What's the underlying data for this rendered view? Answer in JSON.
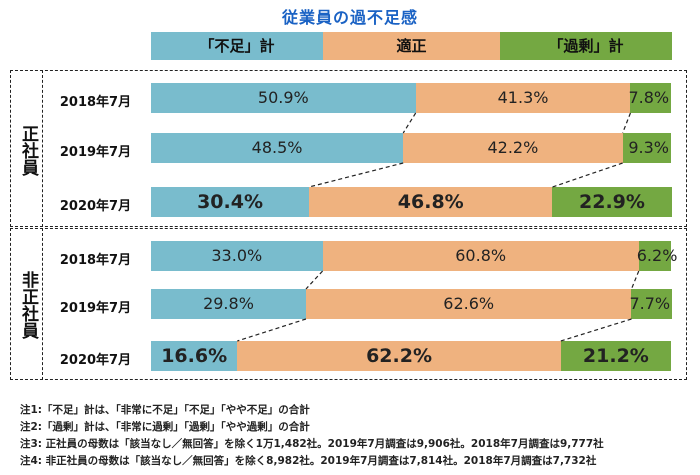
{
  "title": "従業員の過不足感",
  "legend": {
    "shortage": "「不足」計",
    "appropriate": "適正",
    "excess": "「過剰」計"
  },
  "colors": {
    "shortage": "#79bccd",
    "appropriate": "#efb27f",
    "excess": "#74a842"
  },
  "groups": {
    "regular": "正社員",
    "non_regular": "非正社員"
  },
  "chart_data": {
    "type": "bar",
    "orientation": "horizontal",
    "stacked": true,
    "percent": true,
    "title": "従業員の過不足感",
    "categories": [
      "正社員 2018年7月",
      "正社員 2019年7月",
      "正社員 2020年7月",
      "非正社員 2018年7月",
      "非正社員 2019年7月",
      "非正社員 2020年7月"
    ],
    "rows": [
      {
        "group": "正社員",
        "label": "2018年7月",
        "shortage": "50.9%",
        "appropriate": "41.3%",
        "excess": "7.8%",
        "values": [
          50.9,
          41.3,
          7.8
        ],
        "emphasis": false
      },
      {
        "group": "正社員",
        "label": "2019年7月",
        "shortage": "48.5%",
        "appropriate": "42.2%",
        "excess": "9.3%",
        "values": [
          48.5,
          42.2,
          9.3
        ],
        "emphasis": false
      },
      {
        "group": "正社員",
        "label": "2020年7月",
        "shortage": "30.4%",
        "appropriate": "46.8%",
        "excess": "22.9%",
        "values": [
          30.4,
          46.8,
          22.9
        ],
        "emphasis": true
      },
      {
        "group": "非正社員",
        "label": "2018年7月",
        "shortage": "33.0%",
        "appropriate": "60.8%",
        "excess": "6.2%",
        "values": [
          33.0,
          60.8,
          6.2
        ],
        "emphasis": false
      },
      {
        "group": "非正社員",
        "label": "2019年7月",
        "shortage": "29.8%",
        "appropriate": "62.6%",
        "excess": "7.7%",
        "values": [
          29.8,
          62.6,
          7.7
        ],
        "emphasis": false
      },
      {
        "group": "非正社員",
        "label": "2020年7月",
        "shortage": "16.6%",
        "appropriate": "62.2%",
        "excess": "21.2%",
        "values": [
          16.6,
          62.2,
          21.2
        ],
        "emphasis": true
      }
    ],
    "series": [
      {
        "name": "「不足」計",
        "values": [
          50.9,
          48.5,
          30.4,
          33.0,
          29.8,
          16.6
        ]
      },
      {
        "name": "適正",
        "values": [
          41.3,
          42.2,
          46.8,
          60.8,
          62.6,
          62.2
        ]
      },
      {
        "name": "「過剰」計",
        "values": [
          7.8,
          9.3,
          22.9,
          6.2,
          7.7,
          21.2
        ]
      }
    ]
  },
  "notes": [
    "注1:「不足」計は、「非常に不足」「不足」「やや不足」の合計",
    "注2:「過剰」計は、「非常に過剰」「過剰」「やや過剰」の合計",
    "注3: 正社員の母数は「該当なし／無回答」を除く1万1,482社。2019年7月調査は9,906社。2018年7月調査は9,777社",
    "注4: 非正社員の母数は「該当なし／無回答」を除く8,982社。2019年7月調査は7,814社。2018年7月調査は7,732社"
  ]
}
